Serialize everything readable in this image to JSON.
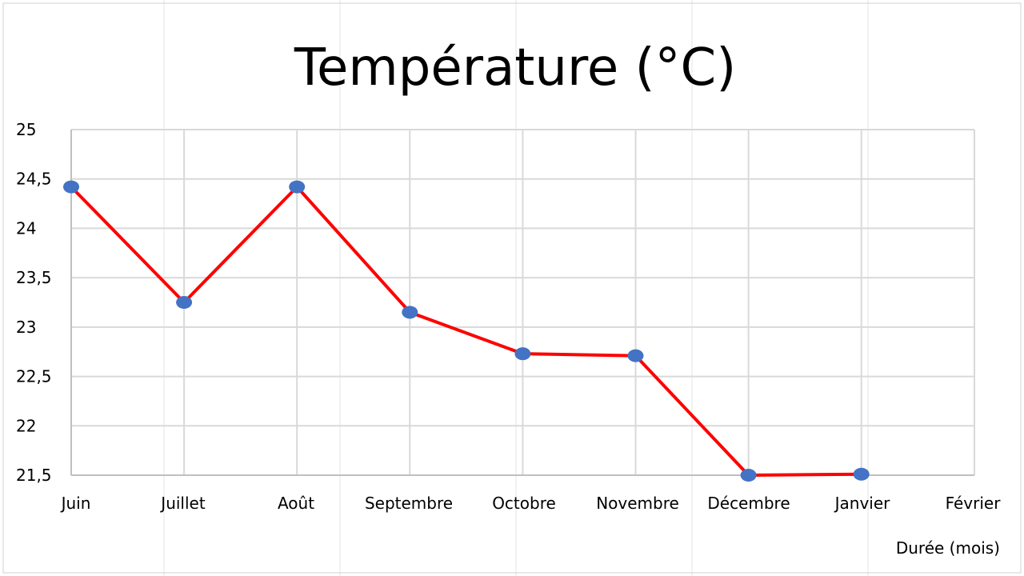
{
  "chart_data": {
    "type": "line",
    "title": "Température (°C)",
    "xlabel": "Durée (mois)",
    "ylabel": "",
    "categories": [
      "Juin",
      "Juillet",
      "Août",
      "Septembre",
      "Octobre",
      "Novembre",
      "Décembre",
      "Janvier",
      "Février"
    ],
    "y_ticks": [
      "25",
      "24,5",
      "24",
      "23,5",
      "23",
      "22,5",
      "22",
      "21,5"
    ],
    "ylim": [
      21.5,
      25
    ],
    "grid": true,
    "legend": "none",
    "series": [
      {
        "values": [
          24.42,
          23.25,
          24.42,
          23.15,
          22.73,
          22.71,
          21.5,
          21.51,
          null
        ]
      }
    ],
    "colors": {
      "line": "#ff0000",
      "marker": "#4472c4",
      "grid": "#d9d9d9",
      "axis": "#bfbfbf",
      "page_grid": "#e6e6e6"
    }
  }
}
